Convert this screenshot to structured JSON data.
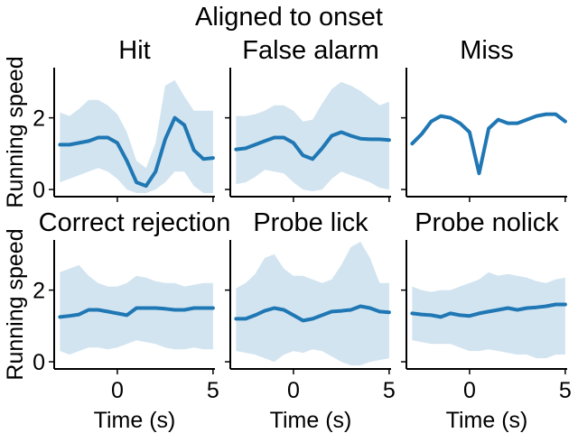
{
  "figure": {
    "suptitle": "Aligned to onset",
    "line_color": "#1f77b4",
    "band_color": "#1f77b4"
  },
  "chart_data": [
    {
      "type": "line",
      "title": "Hit",
      "xlabel": "",
      "ylabel": "Running speed",
      "xlim": [
        -3.3,
        5.1
      ],
      "ylim": [
        -0.2,
        3.4
      ],
      "xticks": [
        0,
        5
      ],
      "yticks": [
        0,
        2
      ],
      "x": [
        -3,
        -2.5,
        -2,
        -1.5,
        -1,
        -0.5,
        0,
        0.5,
        1,
        1.5,
        2,
        2.5,
        3,
        3.5,
        4,
        4.5,
        5
      ],
      "series": [
        {
          "mean": [
            1.25,
            1.25,
            1.3,
            1.35,
            1.45,
            1.45,
            1.3,
            0.8,
            0.2,
            0.1,
            0.5,
            1.4,
            2.0,
            1.8,
            1.1,
            0.85,
            0.88
          ],
          "upper": [
            2.15,
            2.05,
            2.25,
            2.5,
            2.5,
            2.35,
            2.1,
            1.6,
            0.8,
            0.6,
            1.3,
            2.9,
            3.05,
            2.6,
            2.2,
            2.2,
            2.2
          ],
          "lower": [
            0.2,
            0.3,
            0.4,
            0.5,
            0.6,
            0.5,
            0.3,
            0.0,
            -0.1,
            -0.1,
            0.0,
            0.2,
            0.5,
            0.5,
            0.1,
            -0.1,
            -0.1
          ]
        }
      ]
    },
    {
      "type": "line",
      "title": "False alarm",
      "xlabel": "",
      "ylabel": "",
      "xlim": [
        -3.3,
        5.1
      ],
      "ylim": [
        -0.2,
        3.4
      ],
      "xticks": [
        0,
        5
      ],
      "yticks": [
        0,
        2
      ],
      "x": [
        -3,
        -2.5,
        -2,
        -1.5,
        -1,
        -0.5,
        0,
        0.5,
        1,
        1.5,
        2,
        2.5,
        3,
        3.5,
        4,
        4.5,
        5
      ],
      "series": [
        {
          "mean": [
            1.12,
            1.15,
            1.25,
            1.35,
            1.45,
            1.45,
            1.3,
            0.95,
            0.85,
            1.15,
            1.5,
            1.6,
            1.5,
            1.42,
            1.4,
            1.4,
            1.38
          ],
          "upper": [
            2.05,
            2.05,
            2.1,
            2.2,
            2.35,
            2.35,
            2.2,
            1.9,
            1.95,
            2.4,
            2.8,
            3.0,
            2.9,
            2.75,
            2.55,
            2.35,
            2.45
          ],
          "lower": [
            0.15,
            0.2,
            0.35,
            0.55,
            0.5,
            0.45,
            0.2,
            0.0,
            -0.05,
            0.0,
            0.3,
            0.5,
            0.4,
            0.3,
            0.2,
            0.05,
            0.0
          ]
        }
      ]
    },
    {
      "type": "line",
      "title": "Miss",
      "xlabel": "",
      "ylabel": "",
      "xlim": [
        -3.3,
        5.1
      ],
      "ylim": [
        -0.2,
        3.4
      ],
      "xticks": [
        0,
        5
      ],
      "yticks": [
        0,
        2
      ],
      "x": [
        -3,
        -2.5,
        -2,
        -1.5,
        -1,
        -0.5,
        0,
        0.5,
        1,
        1.5,
        2,
        2.5,
        3,
        3.5,
        4,
        4.5,
        5
      ],
      "series": [
        {
          "mean": [
            1.28,
            1.55,
            1.9,
            2.05,
            2.0,
            1.85,
            1.6,
            0.45,
            1.7,
            1.95,
            1.85,
            1.85,
            1.95,
            2.05,
            2.1,
            2.1,
            1.9
          ]
        }
      ]
    },
    {
      "type": "line",
      "title": "Correct rejection",
      "xlabel": "Time (s)",
      "ylabel": "Running speed",
      "xlim": [
        -3.3,
        5.1
      ],
      "ylim": [
        -0.2,
        3.4
      ],
      "xticks": [
        0,
        5
      ],
      "yticks": [
        0,
        2
      ],
      "x": [
        -3,
        -2.5,
        -2,
        -1.5,
        -1,
        -0.5,
        0,
        0.5,
        1,
        1.5,
        2,
        2.5,
        3,
        3.5,
        4,
        4.5,
        5
      ],
      "series": [
        {
          "mean": [
            1.25,
            1.28,
            1.32,
            1.45,
            1.45,
            1.4,
            1.35,
            1.3,
            1.5,
            1.5,
            1.5,
            1.48,
            1.45,
            1.45,
            1.5,
            1.5,
            1.5
          ],
          "upper": [
            2.5,
            2.6,
            2.7,
            2.4,
            2.2,
            2.1,
            2.1,
            2.2,
            2.4,
            2.35,
            2.25,
            2.2,
            2.2,
            2.1,
            2.15,
            2.2,
            2.2
          ],
          "lower": [
            0.3,
            0.2,
            0.3,
            0.4,
            0.4,
            0.35,
            0.4,
            0.5,
            0.6,
            0.55,
            0.5,
            0.4,
            0.35,
            0.35,
            0.4,
            0.35,
            0.35
          ]
        }
      ]
    },
    {
      "type": "line",
      "title": "Probe lick",
      "xlabel": "Time (s)",
      "ylabel": "",
      "xlim": [
        -3.3,
        5.1
      ],
      "ylim": [
        -0.2,
        3.4
      ],
      "xticks": [
        0,
        5
      ],
      "yticks": [
        0,
        2
      ],
      "x": [
        -3,
        -2.5,
        -2,
        -1.5,
        -1,
        -0.5,
        0,
        0.5,
        1,
        1.5,
        2,
        2.5,
        3,
        3.5,
        4,
        4.5,
        5
      ],
      "series": [
        {
          "mean": [
            1.2,
            1.2,
            1.3,
            1.42,
            1.5,
            1.45,
            1.3,
            1.15,
            1.2,
            1.3,
            1.4,
            1.42,
            1.45,
            1.55,
            1.5,
            1.4,
            1.38
          ],
          "upper": [
            2.05,
            2.2,
            2.45,
            2.9,
            3.0,
            2.6,
            2.4,
            2.4,
            2.3,
            2.2,
            2.3,
            2.7,
            3.2,
            3.35,
            2.9,
            2.2,
            2.2
          ],
          "lower": [
            0.3,
            0.25,
            0.2,
            0.1,
            0.0,
            0.2,
            0.3,
            0.25,
            0.35,
            0.3,
            0.15,
            0.0,
            -0.1,
            -0.1,
            0.0,
            0.05,
            0.1
          ]
        }
      ]
    },
    {
      "type": "line",
      "title": "Probe nolick",
      "xlabel": "Time (s)",
      "ylabel": "",
      "xlim": [
        -3.3,
        5.1
      ],
      "ylim": [
        -0.2,
        3.4
      ],
      "xticks": [
        0,
        5
      ],
      "yticks": [
        0,
        2
      ],
      "x": [
        -3,
        -2.5,
        -2,
        -1.5,
        -1,
        -0.5,
        0,
        0.5,
        1,
        1.5,
        2,
        2.5,
        3,
        3.5,
        4,
        4.5,
        5
      ],
      "series": [
        {
          "mean": [
            1.35,
            1.32,
            1.3,
            1.25,
            1.35,
            1.3,
            1.28,
            1.35,
            1.4,
            1.45,
            1.5,
            1.45,
            1.5,
            1.52,
            1.55,
            1.6,
            1.6
          ],
          "upper": [
            2.1,
            2.0,
            1.95,
            2.0,
            2.0,
            2.1,
            2.2,
            2.3,
            2.5,
            2.4,
            2.45,
            2.4,
            2.35,
            2.25,
            2.2,
            2.3,
            2.35
          ],
          "lower": [
            0.6,
            0.55,
            0.5,
            0.5,
            0.5,
            0.4,
            0.3,
            0.3,
            0.35,
            0.3,
            0.25,
            0.2,
            0.2,
            0.1,
            0.1,
            0.2,
            0.2
          ]
        }
      ]
    }
  ]
}
